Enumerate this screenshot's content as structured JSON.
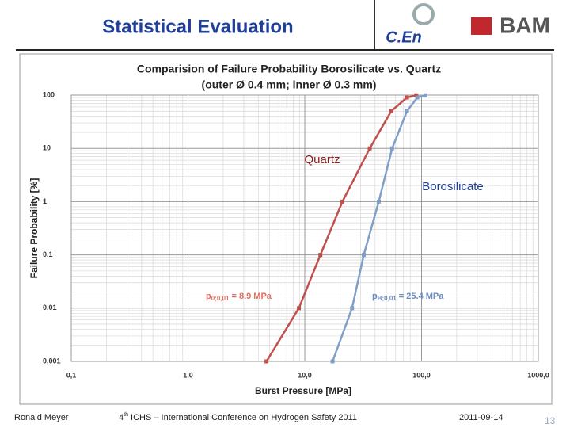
{
  "slide": {
    "title": "Statistical Evaluation",
    "logo_left": "C.En",
    "logo_right": "BAM",
    "footer": {
      "author": "Ronald Meyer",
      "event_num": "4",
      "event_sup": "th",
      "event_rest": " ICHS – International Conference on Hydrogen Safety 2011",
      "date": "2011-09-14",
      "page": "13"
    }
  },
  "chart_data": {
    "type": "line",
    "title": [
      "Comparision of Failure Probability Borosilicate vs. Quartz",
      "(outer Ø 0.4 mm; inner Ø 0.3 mm)"
    ],
    "x_label": "Burst Pressure  [MPa]",
    "y_label": "Failure Probability  [%]",
    "log_x": true,
    "log_y": true,
    "grid": true,
    "xlim": [
      0.1,
      1000
    ],
    "ylim": [
      0.001,
      100
    ],
    "xticks": [
      {
        "value": 0.1,
        "label": "0,1"
      },
      {
        "value": 1,
        "label": "1,0"
      },
      {
        "value": 10,
        "label": "10,0"
      },
      {
        "value": 100,
        "label": "100,0"
      },
      {
        "value": 1000,
        "label": "1000,0"
      }
    ],
    "yticks": [
      {
        "value": 0.001,
        "label": "0,001"
      },
      {
        "value": 0.01,
        "label": "0,01"
      },
      {
        "value": 0.1,
        "label": "0,1"
      },
      1,
      10,
      100
    ],
    "series": [
      {
        "name": "Quartz",
        "color": "#c0504d",
        "x": [
          4.7,
          8.9,
          13.6,
          21,
          36,
          55,
          75,
          90
        ],
        "values": [
          0.001,
          0.01,
          0.1,
          1,
          10,
          50,
          90,
          99
        ]
      },
      {
        "name": "Borosilicate",
        "color": "#7f9fc7",
        "x": [
          17.3,
          25.4,
          32,
          43,
          56,
          75,
          92,
          108
        ],
        "values": [
          0.001,
          0.01,
          0.1,
          1,
          10,
          50,
          90,
          99
        ]
      }
    ],
    "annotations": [
      {
        "text": "p",
        "sub": "0;0,01",
        "rest": " = 8.9 MPa",
        "color": "#e07060"
      },
      {
        "text": "p",
        "sub": "B;0,01",
        "rest": " = 25.4 MPa",
        "color": "#6a8ac0"
      }
    ]
  }
}
